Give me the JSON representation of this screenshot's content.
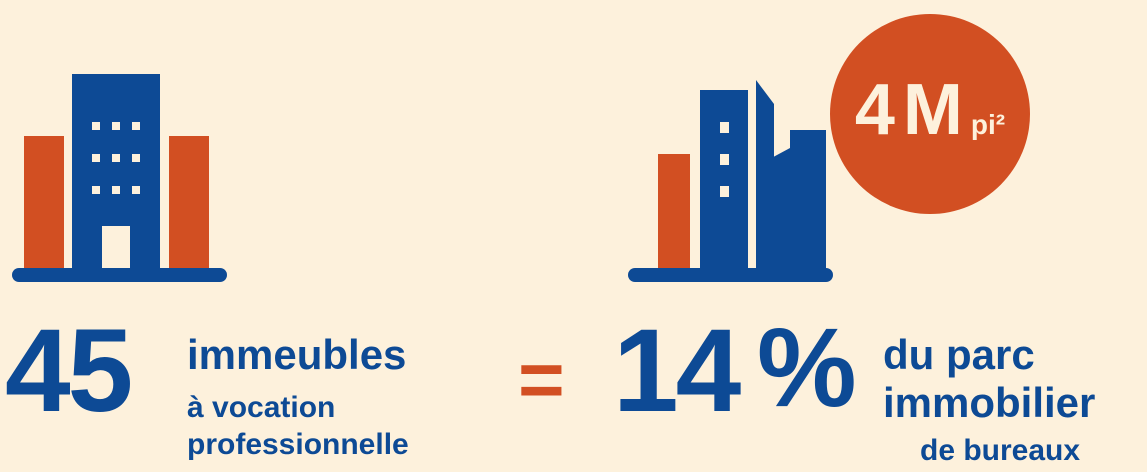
{
  "colors": {
    "background": "#fdf1dc",
    "primary_blue": "#0d4a95",
    "accent_orange": "#d24f22"
  },
  "stat_left": {
    "number": "45",
    "label_main": "immeubles",
    "label_line2": "à vocation",
    "label_line3": "professionnelle",
    "icon": "office-building-icon"
  },
  "equals": "=",
  "stat_right": {
    "number": "14",
    "percent": "%",
    "label_main": "du parc",
    "label_line2": "immobilier",
    "label_line3": "de bureaux",
    "icon": "city-buildings-icon"
  },
  "badge": {
    "value": "4",
    "unit": "M",
    "sub_unit": "pi²"
  }
}
